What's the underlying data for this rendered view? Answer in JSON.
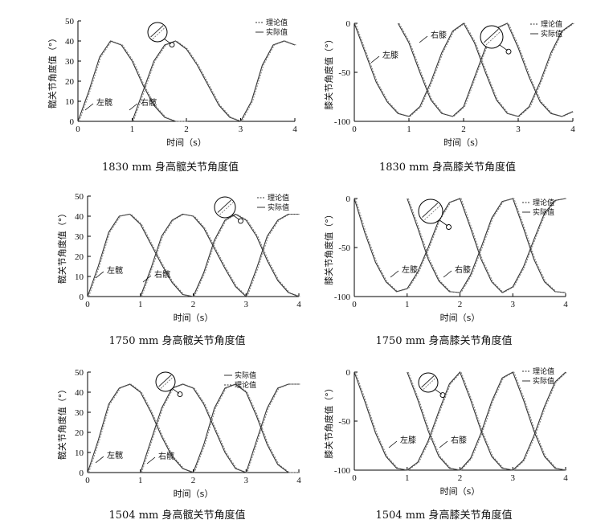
{
  "chart_data": [
    {
      "type": "line",
      "caption": "1830 mm 身高髋关节角度值",
      "xlabel": "时间（s）",
      "ylabel": "髋关节角度值（°）",
      "xlim": [
        0,
        4
      ],
      "ylim": [
        0,
        50
      ],
      "xticks": [
        "0",
        "1",
        "2",
        "3",
        "4"
      ],
      "yticks": [
        "0",
        "10",
        "20",
        "30",
        "40",
        "50"
      ],
      "legend": [
        "理论值",
        "实际值"
      ],
      "annotations": [
        "左髋",
        "右髋"
      ],
      "series": [
        {
          "x": [
            0,
            0.2,
            0.4,
            0.6,
            0.8,
            1.0,
            1.2,
            1.4,
            1.6,
            1.8,
            2.0
          ],
          "values": [
            0,
            15,
            32,
            40,
            38,
            30,
            18,
            8,
            2,
            0,
            0
          ]
        },
        {
          "x": [
            1.0,
            1.2,
            1.4,
            1.6,
            1.8,
            2.0,
            2.2,
            2.4,
            2.6,
            2.8,
            3.0,
            3.2,
            3.4,
            3.6,
            3.8,
            4.0
          ],
          "values": [
            0,
            15,
            30,
            38,
            40,
            36,
            28,
            18,
            8,
            2,
            0,
            10,
            28,
            38,
            40,
            38
          ]
        }
      ]
    },
    {
      "type": "line",
      "caption": "1830 mm 身高膝关节角度值",
      "xlabel": "时间（s）",
      "ylabel": "膝关节角度值（°）",
      "xlim": [
        0,
        4
      ],
      "ylim": [
        -100,
        0
      ],
      "xticks": [
        "0",
        "1",
        "2",
        "3",
        "4"
      ],
      "yticks": [
        "0",
        "-50",
        "-100"
      ],
      "legend": [
        "理论值",
        "实际值"
      ],
      "annotations": [
        "左膝",
        "右膝"
      ],
      "series": [
        {
          "x": [
            0,
            0.2,
            0.4,
            0.6,
            0.8,
            1.0,
            1.2,
            1.4,
            1.6,
            1.8,
            2.0,
            2.2,
            2.4,
            2.6,
            2.8,
            3.0,
            3.2,
            3.4,
            3.6,
            3.8,
            4.0
          ],
          "values": [
            0,
            -30,
            -60,
            -80,
            -92,
            -95,
            -85,
            -60,
            -30,
            -8,
            0,
            -20,
            -50,
            -78,
            -92,
            -95,
            -85,
            -60,
            -30,
            -8,
            0
          ]
        },
        {
          "x": [
            0.8,
            1.0,
            1.2,
            1.4,
            1.6,
            1.8,
            2.0,
            2.2,
            2.4,
            2.6,
            2.8,
            3.0,
            3.2,
            3.4,
            3.6,
            3.8,
            4.0
          ],
          "values": [
            0,
            -20,
            -50,
            -78,
            -92,
            -95,
            -85,
            -55,
            -25,
            -5,
            0,
            -25,
            -55,
            -80,
            -92,
            -95,
            -90
          ]
        }
      ]
    },
    {
      "type": "line",
      "caption": "1750 mm 身高髋关节角度值",
      "xlabel": "时间（s）",
      "ylabel": "髋关节角度值（°）",
      "xlim": [
        0,
        4
      ],
      "ylim": [
        0,
        50
      ],
      "xticks": [
        "0",
        "1",
        "2",
        "3",
        "4"
      ],
      "yticks": [
        "0",
        "10",
        "20",
        "30",
        "40",
        "50"
      ],
      "legend": [
        "理论值",
        "实际值"
      ],
      "annotations": [
        "左髋",
        "右髋"
      ],
      "series": [
        {
          "x": [
            0,
            0.2,
            0.4,
            0.6,
            0.8,
            1.0,
            1.2,
            1.4,
            1.6,
            1.8,
            2.0,
            2.2,
            2.4,
            2.6,
            2.8,
            3.0,
            3.2,
            3.4,
            3.6,
            3.8,
            4.0
          ],
          "values": [
            0,
            15,
            32,
            40,
            41,
            36,
            26,
            16,
            7,
            1,
            0,
            12,
            28,
            38,
            41,
            38,
            30,
            18,
            8,
            2,
            0
          ]
        },
        {
          "x": [
            1.0,
            1.2,
            1.4,
            1.6,
            1.8,
            2.0,
            2.2,
            2.4,
            2.6,
            2.8,
            3.0,
            3.2,
            3.4,
            3.6,
            3.8,
            4.0
          ],
          "values": [
            0,
            14,
            30,
            38,
            41,
            40,
            34,
            24,
            14,
            5,
            0,
            14,
            30,
            38,
            41,
            41
          ]
        }
      ]
    },
    {
      "type": "line",
      "caption": "1750 mm 身高膝关节角度值",
      "xlabel": "时间（s）",
      "ylabel": "膝关节角度值（°）",
      "xlim": [
        0,
        4
      ],
      "ylim": [
        -100,
        0
      ],
      "xticks": [
        "0",
        "1",
        "2",
        "3",
        "4"
      ],
      "yticks": [
        "0",
        "-50",
        "-100"
      ],
      "legend": [
        "理论值",
        "实际值"
      ],
      "annotations": [
        "左膝",
        "右膝"
      ],
      "series": [
        {
          "x": [
            0,
            0.2,
            0.4,
            0.6,
            0.8,
            1.0,
            1.2,
            1.4,
            1.6,
            1.8,
            2.0,
            2.2,
            2.4,
            2.6,
            2.8,
            3.0,
            3.2,
            3.4,
            3.6,
            3.8,
            4.0
          ],
          "values": [
            0,
            -35,
            -65,
            -85,
            -95,
            -92,
            -75,
            -50,
            -22,
            -4,
            0,
            -30,
            -62,
            -85,
            -96,
            -90,
            -70,
            -42,
            -15,
            -2,
            0
          ]
        },
        {
          "x": [
            1.0,
            1.2,
            1.4,
            1.6,
            1.8,
            2.0,
            2.2,
            2.4,
            2.6,
            2.8,
            3.0,
            3.2,
            3.4,
            3.6,
            3.8,
            4.0
          ],
          "values": [
            0,
            -30,
            -62,
            -84,
            -95,
            -96,
            -78,
            -50,
            -20,
            -3,
            0,
            -30,
            -62,
            -85,
            -95,
            -96
          ]
        }
      ]
    },
    {
      "type": "line",
      "caption": "1504 mm 身高髋关节角度值",
      "xlabel": "时间（s）",
      "ylabel": "髋关节角度值（°）",
      "xlim": [
        0,
        4
      ],
      "ylim": [
        0,
        50
      ],
      "xticks": [
        "0",
        "1",
        "2",
        "3",
        "4"
      ],
      "yticks": [
        "0",
        "10",
        "20",
        "30",
        "40",
        "50"
      ],
      "legend": [
        "实际值",
        "理论值"
      ],
      "annotations": [
        "左髋",
        "右髋"
      ],
      "series": [
        {
          "x": [
            0,
            0.2,
            0.4,
            0.6,
            0.8,
            1.0,
            1.2,
            1.4,
            1.6,
            1.8,
            2.0,
            2.2,
            2.4,
            2.6,
            2.8,
            3.0,
            3.2,
            3.4,
            3.6,
            3.8,
            4.0
          ],
          "values": [
            0,
            16,
            34,
            42,
            44,
            40,
            30,
            18,
            8,
            2,
            0,
            14,
            32,
            42,
            44,
            40,
            28,
            14,
            4,
            0,
            0
          ]
        },
        {
          "x": [
            1.0,
            1.2,
            1.4,
            1.6,
            1.8,
            2.0,
            2.2,
            2.4,
            2.6,
            2.8,
            3.0,
            3.2,
            3.4,
            3.6,
            3.8,
            4.0
          ],
          "values": [
            0,
            16,
            32,
            42,
            44,
            42,
            34,
            22,
            10,
            2,
            0,
            16,
            32,
            42,
            44,
            44
          ]
        }
      ]
    },
    {
      "type": "line",
      "caption": "1504 mm 身高膝关节角度值",
      "xlabel": "时间（s）",
      "ylabel": "膝关节角度值（°）",
      "xlim": [
        0,
        4
      ],
      "ylim": [
        -100,
        0
      ],
      "xticks": [
        "0",
        "1",
        "2",
        "3",
        "4"
      ],
      "yticks": [
        "0",
        "-50",
        "-100"
      ],
      "legend": [
        "理论值",
        "实际值"
      ],
      "annotations": [
        "左膝",
        "右膝"
      ],
      "series": [
        {
          "x": [
            0,
            0.2,
            0.4,
            0.6,
            0.8,
            1.0,
            1.2,
            1.4,
            1.6,
            1.8,
            2.0,
            2.2,
            2.4,
            2.6,
            2.8,
            3.0,
            3.2,
            3.4,
            3.6,
            3.8,
            4.0
          ],
          "values": [
            0,
            -30,
            -62,
            -86,
            -98,
            -100,
            -92,
            -70,
            -40,
            -12,
            0,
            -28,
            -60,
            -86,
            -98,
            -100,
            -90,
            -65,
            -35,
            -10,
            0
          ]
        },
        {
          "x": [
            1.0,
            1.2,
            1.4,
            1.6,
            1.8,
            2.0,
            2.2,
            2.4,
            2.6,
            2.8,
            3.0,
            3.2,
            3.4,
            3.6,
            3.8,
            4.0
          ],
          "values": [
            0,
            -28,
            -60,
            -86,
            -98,
            -100,
            -88,
            -62,
            -30,
            -6,
            0,
            -28,
            -60,
            -86,
            -98,
            -100
          ]
        }
      ]
    }
  ]
}
